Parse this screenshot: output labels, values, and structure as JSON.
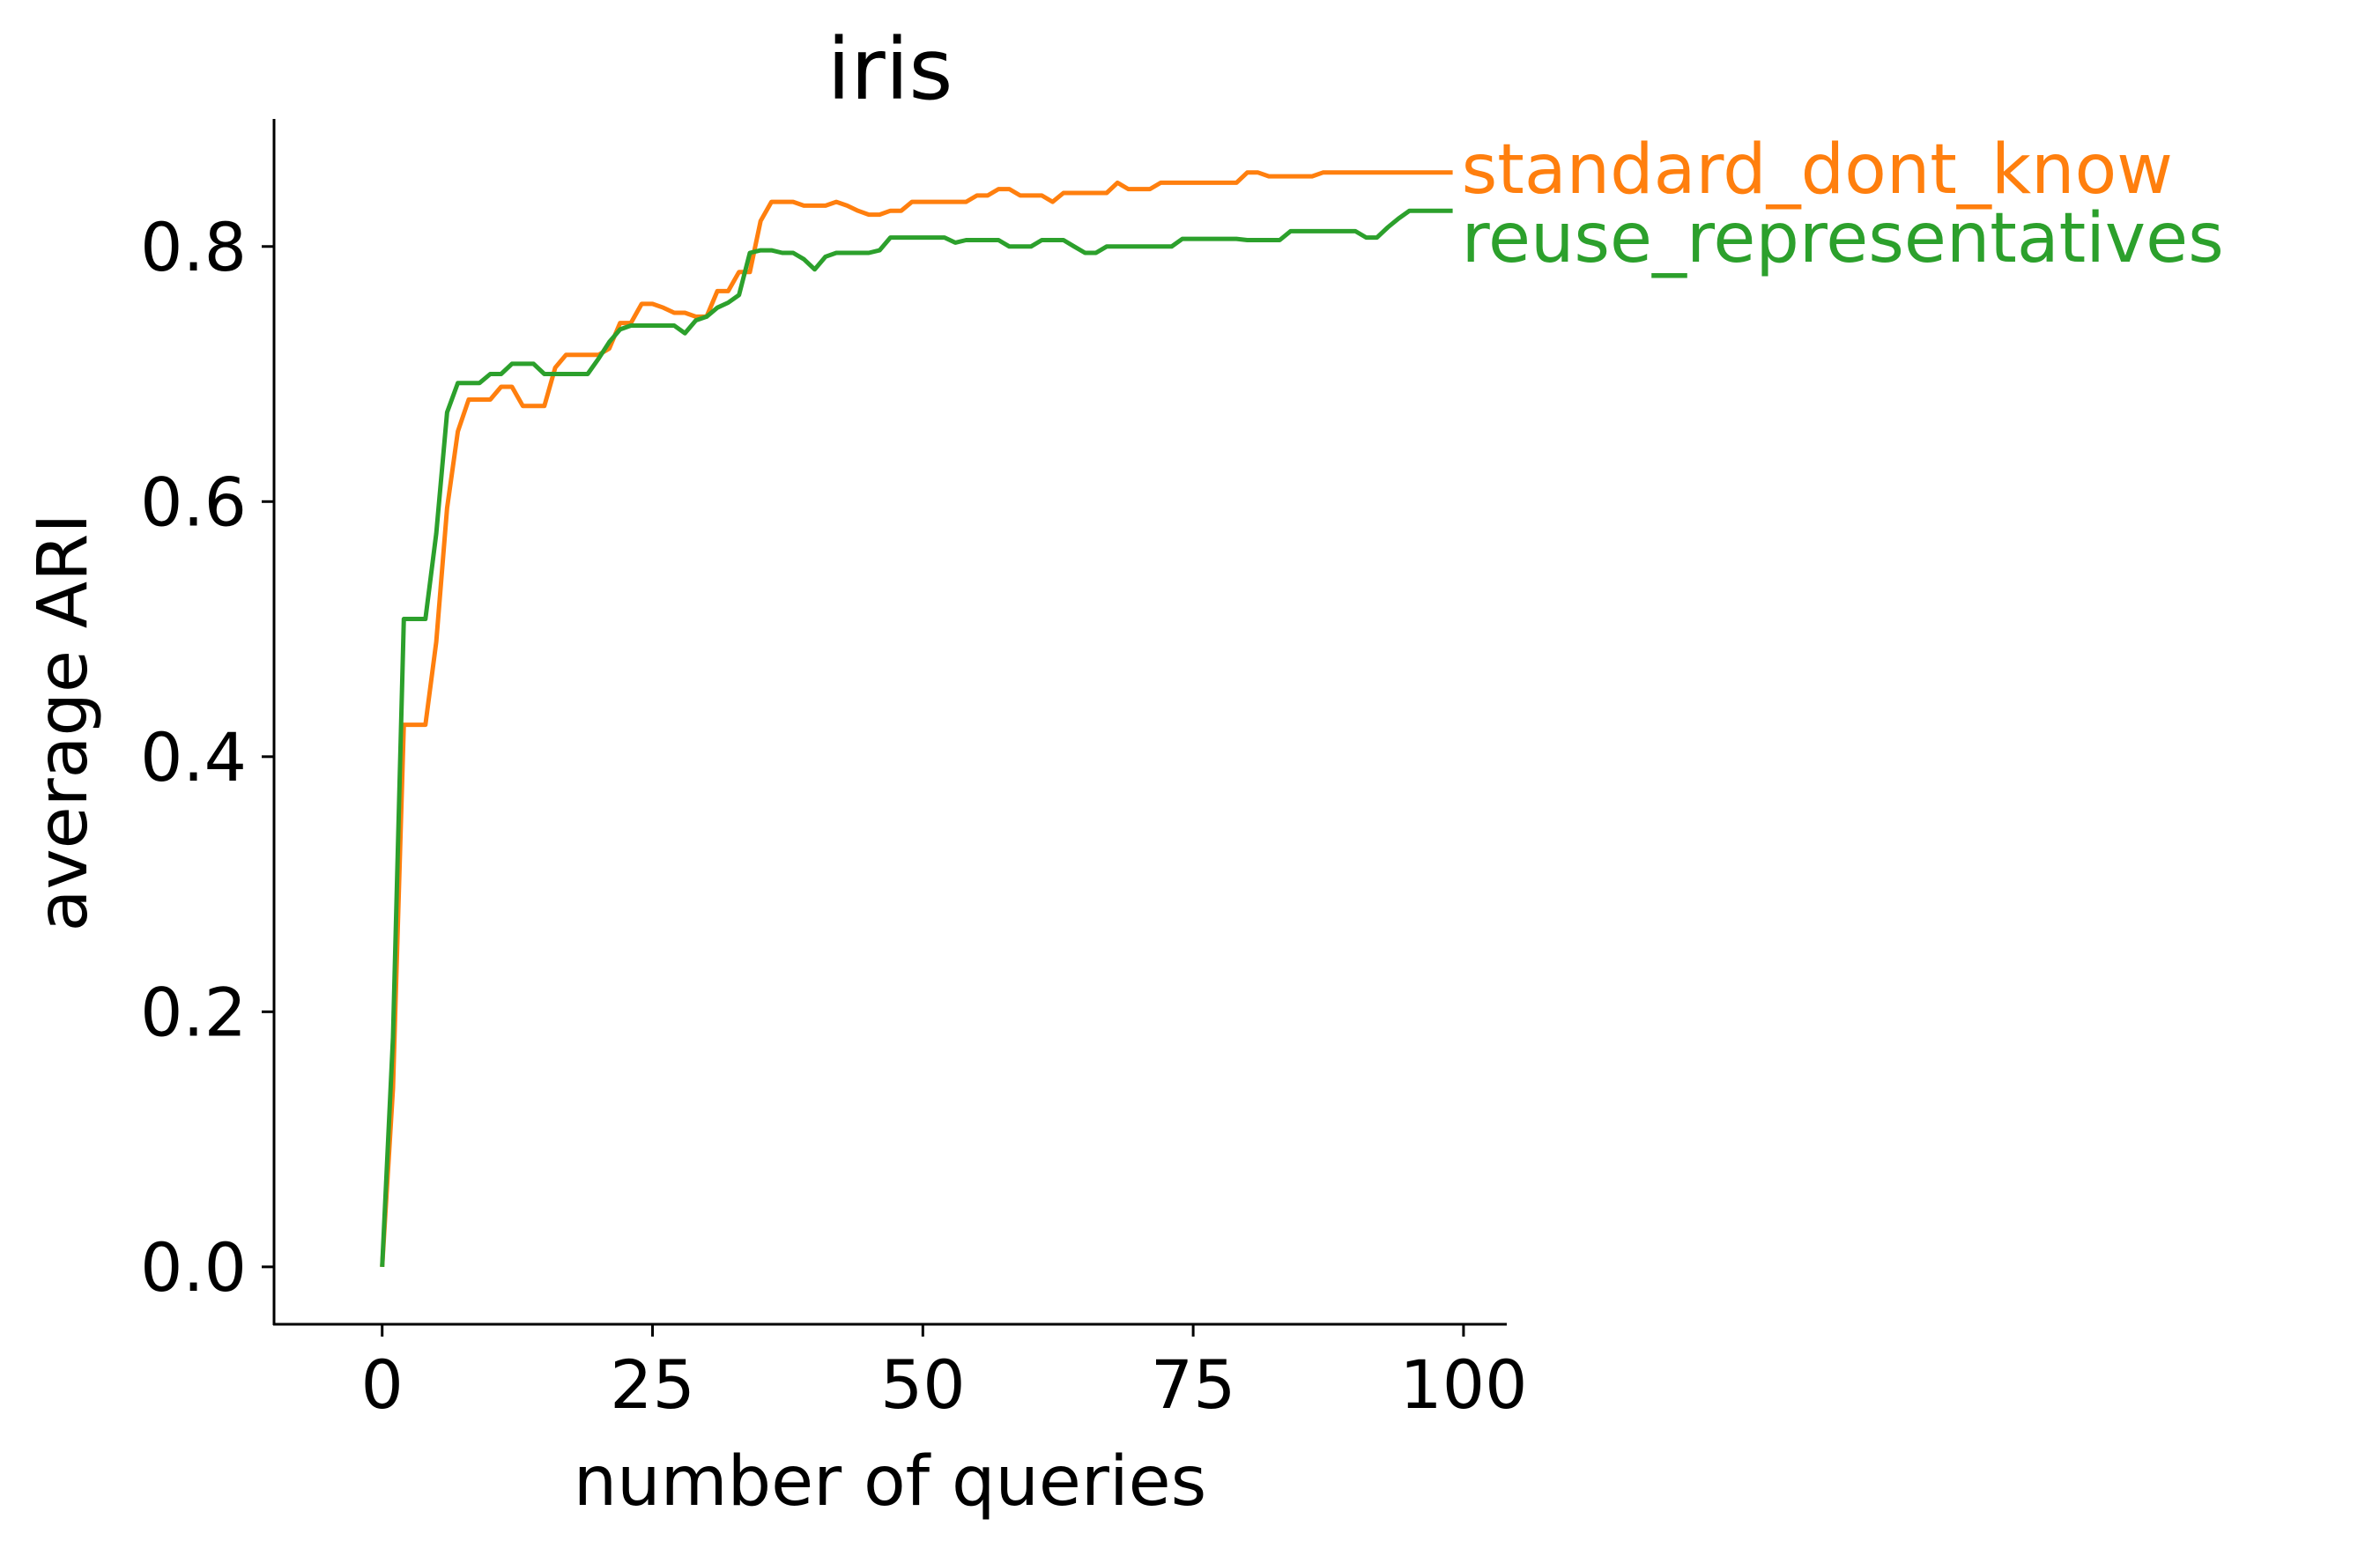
{
  "chart_data": {
    "type": "line",
    "title": "iris",
    "xlabel": "number of queries",
    "ylabel": "average ARI",
    "xlim": [
      -10,
      104
    ],
    "ylim": [
      -0.045,
      0.9
    ],
    "xticks": [
      0,
      25,
      50,
      75,
      100
    ],
    "xtick_labels": [
      "0",
      "25",
      "50",
      "75",
      "100"
    ],
    "yticks": [
      0.0,
      0.2,
      0.4,
      0.6,
      0.8
    ],
    "ytick_labels": [
      "0.0",
      "0.2",
      "0.4",
      "0.6",
      "0.8"
    ],
    "grid": false,
    "legend": "inline labels at line ends",
    "series": [
      {
        "name": "standard_dont_know",
        "color": "#ff7f0e",
        "points": [
          [
            0,
            0.0
          ],
          [
            1,
            0.14
          ],
          [
            2,
            0.425
          ],
          [
            3,
            0.425
          ],
          [
            4,
            0.425
          ],
          [
            5,
            0.49
          ],
          [
            6,
            0.595
          ],
          [
            7,
            0.655
          ],
          [
            8,
            0.68
          ],
          [
            9,
            0.68
          ],
          [
            10,
            0.68
          ],
          [
            11,
            0.69
          ],
          [
            12,
            0.69
          ],
          [
            13,
            0.675
          ],
          [
            14,
            0.675
          ],
          [
            15,
            0.675
          ],
          [
            16,
            0.705
          ],
          [
            17,
            0.715
          ],
          [
            18,
            0.715
          ],
          [
            19,
            0.715
          ],
          [
            20,
            0.715
          ],
          [
            21,
            0.72
          ],
          [
            22,
            0.74
          ],
          [
            23,
            0.74
          ],
          [
            24,
            0.755
          ],
          [
            25,
            0.755
          ],
          [
            26,
            0.752
          ],
          [
            27,
            0.748
          ],
          [
            28,
            0.748
          ],
          [
            29,
            0.745
          ],
          [
            30,
            0.745
          ],
          [
            31,
            0.765
          ],
          [
            32,
            0.765
          ],
          [
            33,
            0.78
          ],
          [
            34,
            0.78
          ],
          [
            35,
            0.82
          ],
          [
            36,
            0.835
          ],
          [
            37,
            0.835
          ],
          [
            38,
            0.835
          ],
          [
            39,
            0.832
          ],
          [
            40,
            0.832
          ],
          [
            41,
            0.832
          ],
          [
            42,
            0.835
          ],
          [
            43,
            0.832
          ],
          [
            44,
            0.828
          ],
          [
            45,
            0.825
          ],
          [
            46,
            0.825
          ],
          [
            47,
            0.828
          ],
          [
            48,
            0.828
          ],
          [
            49,
            0.835
          ],
          [
            50,
            0.835
          ],
          [
            51,
            0.835
          ],
          [
            52,
            0.835
          ],
          [
            53,
            0.835
          ],
          [
            54,
            0.835
          ],
          [
            55,
            0.84
          ],
          [
            56,
            0.84
          ],
          [
            57,
            0.845
          ],
          [
            58,
            0.845
          ],
          [
            59,
            0.84
          ],
          [
            60,
            0.84
          ],
          [
            61,
            0.84
          ],
          [
            62,
            0.835
          ],
          [
            63,
            0.842
          ],
          [
            64,
            0.842
          ],
          [
            65,
            0.842
          ],
          [
            66,
            0.842
          ],
          [
            67,
            0.842
          ],
          [
            68,
            0.85
          ],
          [
            69,
            0.845
          ],
          [
            70,
            0.845
          ],
          [
            71,
            0.845
          ],
          [
            72,
            0.85
          ],
          [
            73,
            0.85
          ],
          [
            74,
            0.85
          ],
          [
            75,
            0.85
          ],
          [
            76,
            0.85
          ],
          [
            77,
            0.85
          ],
          [
            78,
            0.85
          ],
          [
            79,
            0.85
          ],
          [
            80,
            0.858
          ],
          [
            81,
            0.858
          ],
          [
            82,
            0.855
          ],
          [
            83,
            0.855
          ],
          [
            84,
            0.855
          ],
          [
            85,
            0.855
          ],
          [
            86,
            0.855
          ],
          [
            87,
            0.858
          ],
          [
            88,
            0.858
          ],
          [
            89,
            0.858
          ],
          [
            90,
            0.858
          ],
          [
            91,
            0.858
          ],
          [
            92,
            0.858
          ],
          [
            93,
            0.858
          ],
          [
            94,
            0.858
          ],
          [
            95,
            0.858
          ],
          [
            96,
            0.858
          ],
          [
            97,
            0.858
          ],
          [
            98,
            0.858
          ],
          [
            99,
            0.858
          ]
        ]
      },
      {
        "name": "reuse_representatives",
        "color": "#2ca02c",
        "points": [
          [
            0,
            0.0
          ],
          [
            1,
            0.18
          ],
          [
            2,
            0.508
          ],
          [
            3,
            0.508
          ],
          [
            4,
            0.508
          ],
          [
            5,
            0.575
          ],
          [
            6,
            0.67
          ],
          [
            7,
            0.693
          ],
          [
            8,
            0.693
          ],
          [
            9,
            0.693
          ],
          [
            10,
            0.7
          ],
          [
            11,
            0.7
          ],
          [
            12,
            0.708
          ],
          [
            13,
            0.708
          ],
          [
            14,
            0.708
          ],
          [
            15,
            0.7
          ],
          [
            16,
            0.7
          ],
          [
            17,
            0.7
          ],
          [
            18,
            0.7
          ],
          [
            19,
            0.7
          ],
          [
            20,
            0.712
          ],
          [
            21,
            0.725
          ],
          [
            22,
            0.735
          ],
          [
            23,
            0.738
          ],
          [
            24,
            0.738
          ],
          [
            25,
            0.738
          ],
          [
            26,
            0.738
          ],
          [
            27,
            0.738
          ],
          [
            28,
            0.732
          ],
          [
            29,
            0.742
          ],
          [
            30,
            0.745
          ],
          [
            31,
            0.752
          ],
          [
            32,
            0.756
          ],
          [
            33,
            0.762
          ],
          [
            34,
            0.795
          ],
          [
            35,
            0.797
          ],
          [
            36,
            0.797
          ],
          [
            37,
            0.795
          ],
          [
            38,
            0.795
          ],
          [
            39,
            0.79
          ],
          [
            40,
            0.782
          ],
          [
            41,
            0.792
          ],
          [
            42,
            0.795
          ],
          [
            43,
            0.795
          ],
          [
            44,
            0.795
          ],
          [
            45,
            0.795
          ],
          [
            46,
            0.797
          ],
          [
            47,
            0.807
          ],
          [
            48,
            0.807
          ],
          [
            49,
            0.807
          ],
          [
            50,
            0.807
          ],
          [
            51,
            0.807
          ],
          [
            52,
            0.807
          ],
          [
            53,
            0.803
          ],
          [
            54,
            0.805
          ],
          [
            55,
            0.805
          ],
          [
            56,
            0.805
          ],
          [
            57,
            0.805
          ],
          [
            58,
            0.8
          ],
          [
            59,
            0.8
          ],
          [
            60,
            0.8
          ],
          [
            61,
            0.805
          ],
          [
            62,
            0.805
          ],
          [
            63,
            0.805
          ],
          [
            64,
            0.8
          ],
          [
            65,
            0.795
          ],
          [
            66,
            0.795
          ],
          [
            67,
            0.8
          ],
          [
            68,
            0.8
          ],
          [
            69,
            0.8
          ],
          [
            70,
            0.8
          ],
          [
            71,
            0.8
          ],
          [
            72,
            0.8
          ],
          [
            73,
            0.8
          ],
          [
            74,
            0.806
          ],
          [
            75,
            0.806
          ],
          [
            76,
            0.806
          ],
          [
            77,
            0.806
          ],
          [
            78,
            0.806
          ],
          [
            79,
            0.806
          ],
          [
            80,
            0.805
          ],
          [
            81,
            0.805
          ],
          [
            82,
            0.805
          ],
          [
            83,
            0.805
          ],
          [
            84,
            0.812
          ],
          [
            85,
            0.812
          ],
          [
            86,
            0.812
          ],
          [
            87,
            0.812
          ],
          [
            88,
            0.812
          ],
          [
            89,
            0.812
          ],
          [
            90,
            0.812
          ],
          [
            91,
            0.807
          ],
          [
            92,
            0.807
          ],
          [
            93,
            0.815
          ],
          [
            94,
            0.822
          ],
          [
            95,
            0.828
          ],
          [
            96,
            0.828
          ],
          [
            97,
            0.828
          ],
          [
            98,
            0.828
          ],
          [
            99,
            0.828
          ]
        ]
      }
    ]
  }
}
